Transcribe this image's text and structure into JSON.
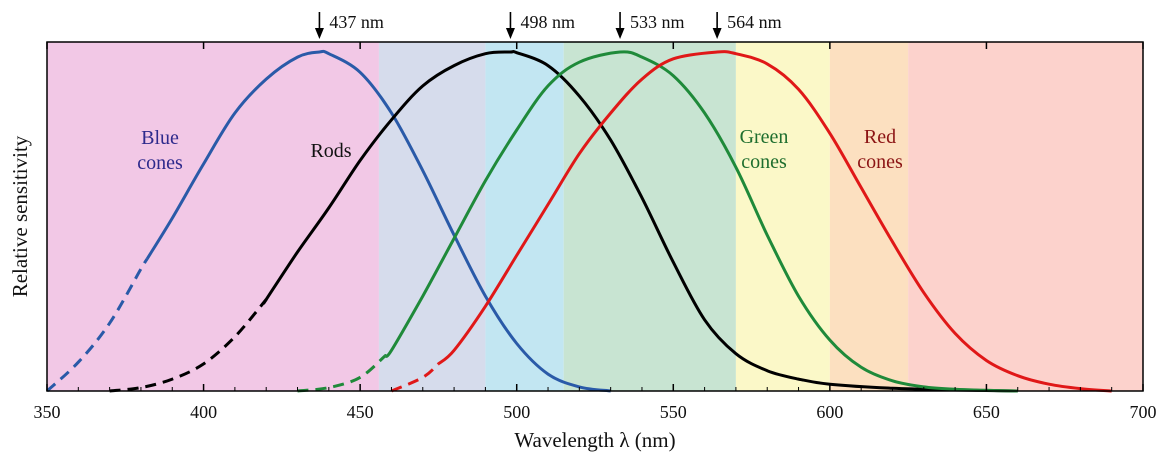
{
  "chart_data": {
    "type": "line",
    "xlabel": "Wavelength  λ  (nm)",
    "ylabel": "Relative sensitivity",
    "xlim": [
      350,
      700
    ],
    "ylim": [
      0,
      1
    ],
    "xticks": [
      350,
      400,
      450,
      500,
      550,
      600,
      650,
      700
    ],
    "grid": false,
    "bands": [
      {
        "from": 350,
        "to": 456,
        "color": "#f2c8e6"
      },
      {
        "from": 456,
        "to": 490,
        "color": "#d6dcec"
      },
      {
        "from": 490,
        "to": 515,
        "color": "#c2e6f2"
      },
      {
        "from": 515,
        "to": 570,
        "color": "#c8e4d2"
      },
      {
        "from": 570,
        "to": 600,
        "color": "#fbf8c8"
      },
      {
        "from": 600,
        "to": 625,
        "color": "#fce0c0"
      },
      {
        "from": 625,
        "to": 700,
        "color": "#fcd2cc"
      }
    ],
    "series": [
      {
        "name": "Blue cones",
        "label_lines": [
          "Blue",
          "cones"
        ],
        "color": "#2a5aa8",
        "label_color": "#2e2a8c",
        "peak": 437,
        "x": [
          350,
          360,
          370,
          380,
          390,
          400,
          410,
          420,
          430,
          437,
          440,
          450,
          460,
          470,
          480,
          490,
          500,
          510,
          520,
          530
        ],
        "y": [
          0.0,
          0.085,
          0.2,
          0.36,
          0.51,
          0.67,
          0.82,
          0.92,
          0.985,
          1.0,
          0.995,
          0.94,
          0.82,
          0.65,
          0.46,
          0.28,
          0.14,
          0.05,
          0.012,
          0.0
        ],
        "dashed_until": 382
      },
      {
        "name": "Rods",
        "label_lines": [
          "Rods"
        ],
        "color": "#000000",
        "label_color": "#111111",
        "peak": 498,
        "x": [
          370,
          380,
          390,
          400,
          410,
          420,
          430,
          440,
          450,
          460,
          470,
          480,
          490,
          498,
          500,
          510,
          520,
          530,
          540,
          550,
          560,
          570,
          580,
          590,
          600,
          620,
          640,
          660
        ],
        "y": [
          0.0,
          0.01,
          0.035,
          0.08,
          0.16,
          0.27,
          0.41,
          0.54,
          0.68,
          0.8,
          0.9,
          0.96,
          0.995,
          1.0,
          0.998,
          0.96,
          0.87,
          0.74,
          0.57,
          0.38,
          0.21,
          0.11,
          0.06,
          0.035,
          0.02,
          0.008,
          0.003,
          0.0
        ],
        "dashed_until": 420
      },
      {
        "name": "Green cones",
        "label_lines": [
          "Green",
          "cones"
        ],
        "color": "#1f8a3a",
        "label_color": "#1e6e2e",
        "peak": 533,
        "x": [
          430,
          440,
          450,
          460,
          470,
          480,
          490,
          500,
          510,
          520,
          533,
          540,
          550,
          560,
          570,
          580,
          590,
          600,
          610,
          620,
          630,
          640,
          650,
          660
        ],
        "y": [
          0.0,
          0.01,
          0.04,
          0.12,
          0.28,
          0.45,
          0.62,
          0.77,
          0.9,
          0.97,
          1.0,
          0.985,
          0.93,
          0.82,
          0.66,
          0.46,
          0.28,
          0.15,
          0.07,
          0.03,
          0.012,
          0.005,
          0.002,
          0.0
        ],
        "dashed_until": 458
      },
      {
        "name": "Red cones",
        "label_lines": [
          "Red",
          "cones"
        ],
        "color": "#e01818",
        "label_color": "#8c1414",
        "peak": 564,
        "x": [
          460,
          470,
          480,
          490,
          500,
          510,
          520,
          530,
          540,
          550,
          564,
          570,
          580,
          590,
          600,
          610,
          620,
          630,
          640,
          650,
          660,
          670,
          680,
          690
        ],
        "y": [
          0.0,
          0.04,
          0.12,
          0.25,
          0.4,
          0.55,
          0.7,
          0.82,
          0.92,
          0.98,
          1.0,
          0.995,
          0.965,
          0.89,
          0.76,
          0.6,
          0.44,
          0.29,
          0.17,
          0.09,
          0.045,
          0.02,
          0.007,
          0.0
        ],
        "dashed_until": 475
      }
    ],
    "peak_labels": [
      "437 nm",
      "498 nm",
      "533 nm",
      "564 nm"
    ]
  }
}
